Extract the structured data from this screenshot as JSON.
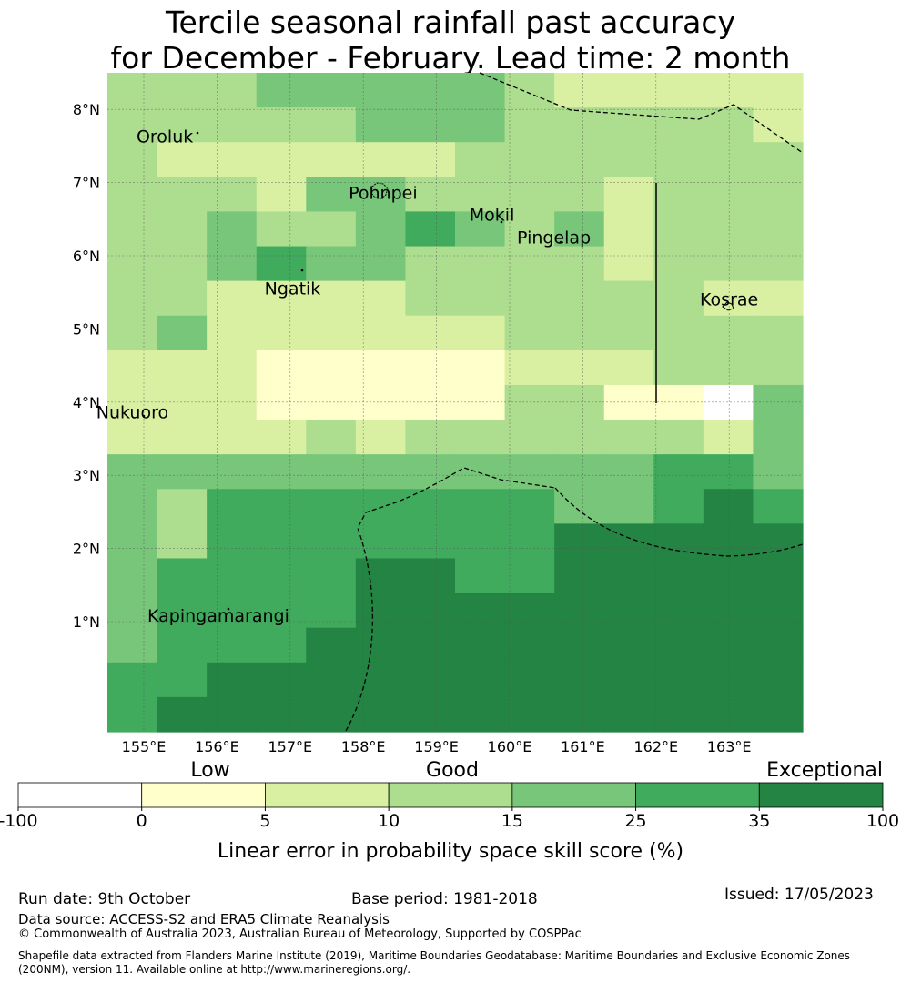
{
  "title": {
    "line1": "Tercile seasonal rainfall past accuracy",
    "line2": "for December - February. Lead time: 2 month"
  },
  "map": {
    "lat_labels": [
      "8°N",
      "7°N",
      "6°N",
      "5°N",
      "4°N",
      "3°N",
      "2°N",
      "1°N"
    ],
    "lat_values": [
      8,
      7,
      6,
      5,
      4,
      3,
      2,
      1
    ],
    "lon_labels": [
      "155°E",
      "156°E",
      "157°E",
      "158°E",
      "159°E",
      "160°E",
      "161°E",
      "162°E",
      "163°E"
    ],
    "lon_values": [
      155,
      156,
      157,
      158,
      159,
      160,
      161,
      162,
      163
    ],
    "places": [
      {
        "name": "Oroluk",
        "lon": 154.9,
        "lat": 7.55
      },
      {
        "name": "Pohnpei",
        "lon": 157.8,
        "lat": 6.78
      },
      {
        "name": "Mokil",
        "lon": 159.45,
        "lat": 6.48
      },
      {
        "name": "Pingelap",
        "lon": 160.1,
        "lat": 6.17
      },
      {
        "name": "Ngatik",
        "lon": 156.65,
        "lat": 5.47
      },
      {
        "name": "Kosrae",
        "lon": 162.6,
        "lat": 5.32
      },
      {
        "name": "Nukuoro",
        "lon": 154.35,
        "lat": 3.78
      },
      {
        "name": "Kapingamarangi",
        "lon": 155.05,
        "lat": 1.0
      }
    ],
    "grid_rows_north_to_south": [
      "33344444322222",
      "33333444333332",
      "32222223333333",
      "33324433332333",
      "33433454342333",
      "33454433332333",
      "33222233333322",
      "34222222333333",
      "22211111222333",
      "22211111331104",
      "22223233333324",
      "44444444444554",
      "43555555544565",
      "43555555566666",
      "45555665566666",
      "45555666666666",
      "45556666666666",
      "55666666666666",
      "56666666666666"
    ],
    "colors_by_class": [
      "#ffffff",
      "#ffffcc",
      "#d9f0a3",
      "#addd8e",
      "#78c679",
      "#41ab5d",
      "#238443"
    ]
  },
  "legend": {
    "category_labels": {
      "low": "Low",
      "good": "Good",
      "exceptional": "Exceptional"
    },
    "ticks": [
      "-100",
      "0",
      "5",
      "10",
      "15",
      "25",
      "35",
      "100"
    ],
    "colors": [
      "#ffffff",
      "#ffffcc",
      "#d9f0a3",
      "#addd8e",
      "#78c679",
      "#41ab5d",
      "#238443"
    ],
    "title": "Linear error in probability space skill score (%)"
  },
  "footer": {
    "run_date": "Run date: 9th October",
    "base_period": "Base period: 1981-2018",
    "issued": "Issued: 17/05/2023",
    "data_source": "Data source: ACCESS-S2 and ERA5 Climate Reanalysis",
    "copyright": "© Commonwealth of Australia 2023, Australian Bureau of Meteorology, Supported by COSPPac",
    "shapefile": "Shapefile data extracted from Flanders Marine Institute (2019), Maritime Boundaries Geodatabase: Maritime Boundaries and Exclusive Economic Zones (200NM), version 11. Available online at http://www.marineregions.org/."
  }
}
